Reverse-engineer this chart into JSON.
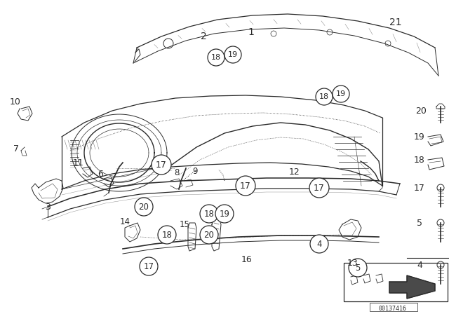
{
  "background_color": "#ffffff",
  "diagram_id": "00137416",
  "gray": "#2a2a2a",
  "light_gray": "#888888",
  "figsize": [
    6.4,
    4.48
  ],
  "dpi": 100
}
